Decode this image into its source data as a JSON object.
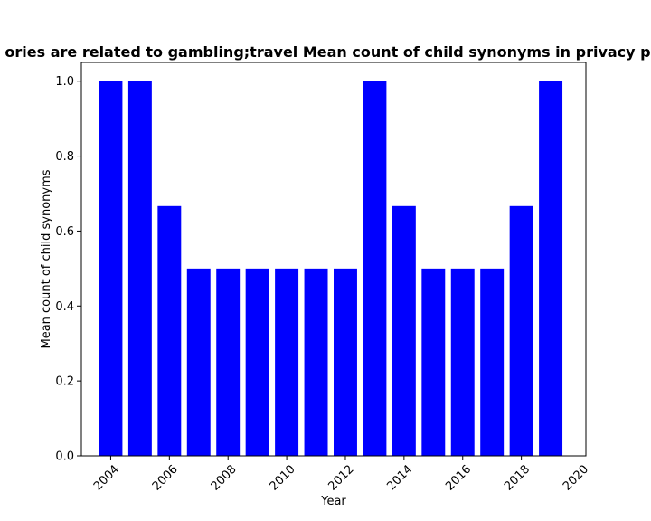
{
  "chart_data": {
    "type": "bar",
    "title": "ories are related to gambling;travel Mean count of child synonyms in privacy po",
    "xlabel": "Year",
    "ylabel": "Mean count of child synonyms",
    "x": [
      2004,
      2005,
      2006,
      2007,
      2008,
      2009,
      2010,
      2011,
      2012,
      2013,
      2014,
      2015,
      2016,
      2017,
      2018,
      2019
    ],
    "values": [
      1.0,
      1.0,
      0.6667,
      0.5,
      0.5,
      0.5,
      0.5,
      0.5,
      0.5,
      1.0,
      0.6667,
      0.5,
      0.5,
      0.5,
      0.6667,
      1.0
    ],
    "xlim": [
      2003.0,
      2020.2
    ],
    "ylim": [
      0,
      1.05
    ],
    "xticks": [
      2004,
      2006,
      2008,
      2010,
      2012,
      2014,
      2016,
      2018,
      2020
    ],
    "yticks": [
      0.0,
      0.2,
      0.4,
      0.6,
      0.8,
      1.0
    ],
    "ytick_labels": [
      "0.0",
      "0.2",
      "0.4",
      "0.6",
      "0.8",
      "1.0"
    ],
    "bar_color": "#0000ff",
    "grid": false,
    "legend": "none"
  }
}
